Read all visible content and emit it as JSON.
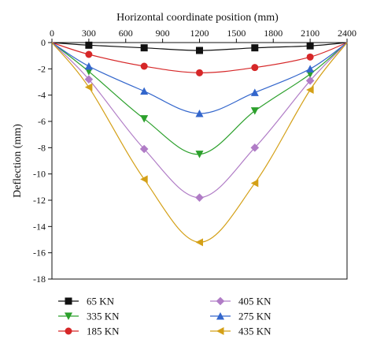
{
  "chart_data": {
    "type": "line",
    "xlabel": "Horizontal coordinate position (mm)",
    "ylabel": "Deflection (mm)",
    "x_ticks": [
      0,
      300,
      600,
      900,
      1200,
      1500,
      1800,
      2100,
      2400
    ],
    "y_ticks": [
      0,
      -2,
      -4,
      -6,
      -8,
      -10,
      -12,
      -14,
      -16,
      -18
    ],
    "xlim": [
      0,
      2400
    ],
    "ylim": [
      -18,
      0
    ],
    "x_axis_position": "top",
    "legend_position": "bottom",
    "x": [
      0,
      300,
      750,
      1200,
      1650,
      2100,
      2400
    ],
    "series": [
      {
        "name": "65 KN",
        "marker": "square",
        "color": "#111111",
        "values": [
          0,
          -0.2,
          -0.4,
          -0.6,
          -0.4,
          -0.25,
          0
        ]
      },
      {
        "name": "335 KN",
        "marker": "triangle-down",
        "color": "#2ca02c",
        "values": [
          0,
          -2.2,
          -5.8,
          -8.5,
          -5.2,
          -2.4,
          0
        ]
      },
      {
        "name": "185 KN",
        "marker": "circle",
        "color": "#d62728",
        "values": [
          0,
          -0.9,
          -1.8,
          -2.3,
          -1.9,
          -1.1,
          0
        ]
      },
      {
        "name": "405 KN",
        "marker": "diamond",
        "color": "#b07cc6",
        "values": [
          0,
          -2.8,
          -8.1,
          -11.8,
          -8.0,
          -2.9,
          0
        ]
      },
      {
        "name": "275 KN",
        "marker": "triangle-up",
        "color": "#3366cc",
        "values": [
          0,
          -1.8,
          -3.7,
          -5.4,
          -3.8,
          -2.0,
          0
        ]
      },
      {
        "name": "435 KN",
        "marker": "triangle-left",
        "color": "#d4a017",
        "values": [
          0,
          -3.4,
          -10.4,
          -15.2,
          -10.7,
          -3.6,
          0
        ]
      }
    ]
  }
}
